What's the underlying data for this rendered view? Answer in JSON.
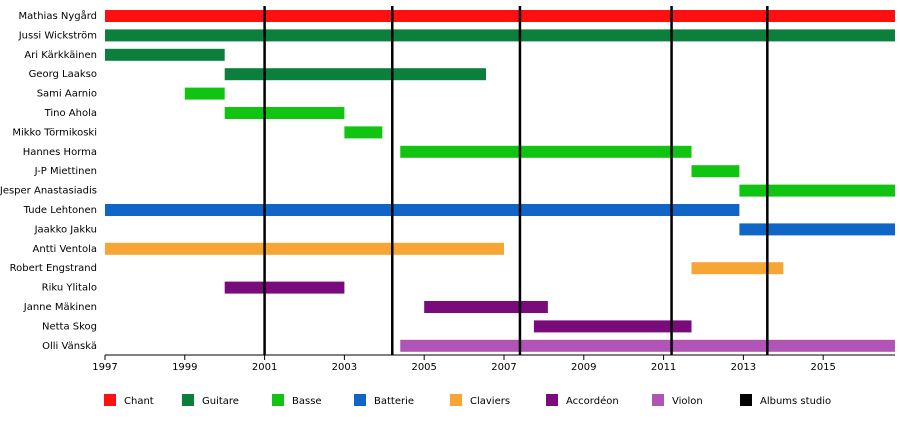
{
  "chart_data": {
    "type": "timeline",
    "categories": [
      "Mathias Nygård",
      "Jussi Wickström",
      "Ari Kärkkäinen",
      "Georg Laakso",
      "Sami Aarnio",
      "Tino Ahola",
      "Mikko Törmikoski",
      "Hannes Horma",
      "J-P Miettinen",
      "Jesper Anastasiadis",
      "Tude Lehtonen",
      "Jaakko Jakku",
      "Antti Ventola",
      "Robert Engstrand",
      "Riku Ylitalo",
      "Janne Mäkinen",
      "Netta Skog",
      "Olli Vänskä"
    ],
    "series": [
      {
        "name": "Chant",
        "color": "#ff1010",
        "values": [
          [
            1997,
            2016.8
          ],
          null,
          null,
          null,
          null,
          null,
          null,
          null,
          null,
          null,
          null,
          null,
          null,
          null,
          null,
          null,
          null,
          null
        ]
      },
      {
        "name": "Guitare",
        "color": "#0b7f3b",
        "values": [
          null,
          [
            1997,
            2016.8
          ],
          [
            1997,
            2000
          ],
          [
            2000,
            2006.55
          ],
          null,
          null,
          null,
          null,
          null,
          null,
          null,
          null,
          null,
          null,
          null,
          null,
          null,
          null
        ]
      },
      {
        "name": "Basse",
        "color": "#12c412",
        "values": [
          null,
          null,
          null,
          null,
          [
            1999,
            2000
          ],
          [
            2000,
            2003
          ],
          [
            2003,
            2003.95
          ],
          [
            2004.4,
            2011.7
          ],
          [
            2011.7,
            2012.9
          ],
          [
            2012.9,
            2016.8
          ],
          null,
          null,
          null,
          null,
          null,
          null,
          null,
          null
        ]
      },
      {
        "name": "Batterie",
        "color": "#0f66c6",
        "values": [
          null,
          null,
          null,
          null,
          null,
          null,
          null,
          null,
          null,
          null,
          [
            1997,
            2012.9
          ],
          [
            2012.9,
            2016.8
          ],
          null,
          null,
          null,
          null,
          null,
          null
        ]
      },
      {
        "name": "Claviers",
        "color": "#f7a535",
        "values": [
          null,
          null,
          null,
          null,
          null,
          null,
          null,
          null,
          null,
          null,
          null,
          null,
          [
            1997,
            2007
          ],
          [
            2011.7,
            2014
          ],
          null,
          null,
          null,
          null
        ]
      },
      {
        "name": "Accordéon",
        "color": "#7a0b7a",
        "values": [
          null,
          null,
          null,
          null,
          null,
          null,
          null,
          null,
          null,
          null,
          null,
          null,
          null,
          null,
          [
            2000,
            2003
          ],
          [
            2005,
            2008.1
          ],
          [
            2007.75,
            2011.7
          ],
          null
        ]
      },
      {
        "name": "Violon",
        "color": "#b055b5",
        "values": [
          null,
          null,
          null,
          null,
          null,
          null,
          null,
          null,
          null,
          null,
          null,
          null,
          null,
          null,
          null,
          null,
          null,
          [
            2004.4,
            2016.8
          ]
        ]
      }
    ],
    "albums": {
      "name": "Albums studio",
      "color": "#000000",
      "values": [
        2001,
        2004.2,
        2007.4,
        2011.2,
        2013.6
      ]
    },
    "xlim": [
      1997,
      2016.8
    ],
    "xticks": [
      1997,
      1999,
      2001,
      2003,
      2005,
      2007,
      2009,
      2011,
      2013,
      2015
    ]
  }
}
